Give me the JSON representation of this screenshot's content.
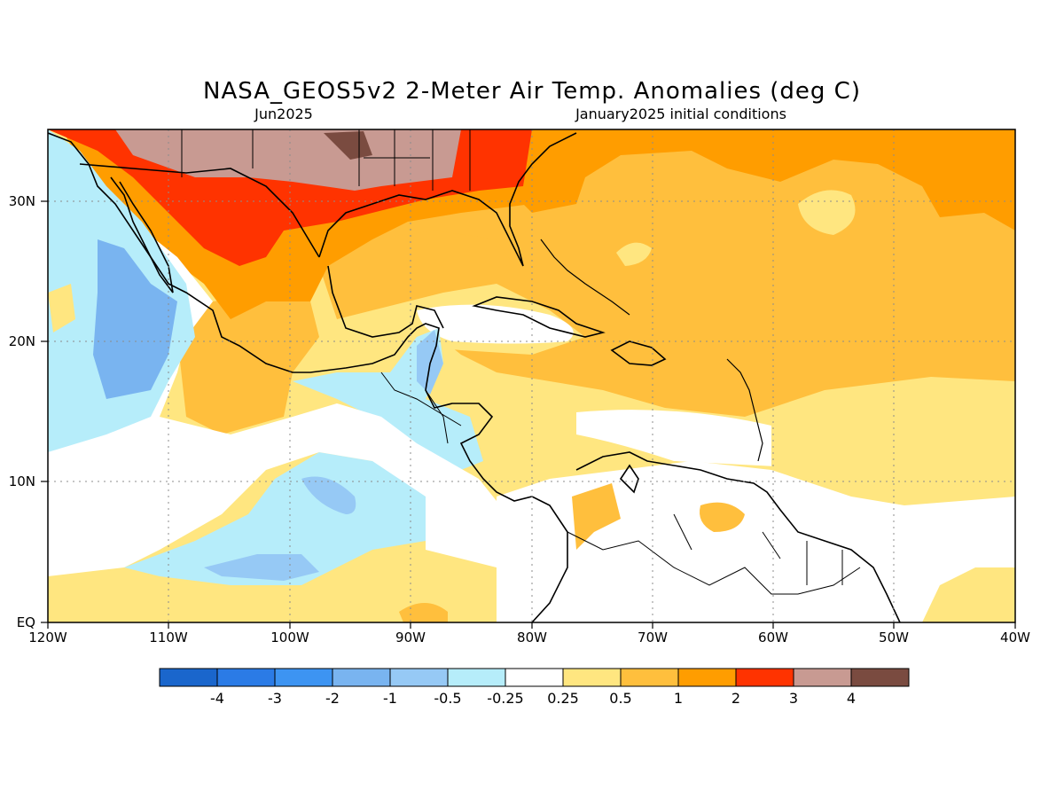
{
  "title": "NASA_GEOS5v2 2-Meter Air Temp. Anomalies (deg C)",
  "subtitle_left": "Jun2025",
  "subtitle_right": "January2025 initial conditions",
  "lat_labels": [
    "30N",
    "20N",
    "10N",
    "EQ"
  ],
  "lon_labels": [
    "120W",
    "110W",
    "100W",
    "90W",
    "80W",
    "70W",
    "60W",
    "50W",
    "40W"
  ],
  "colorbar": {
    "colors": [
      "#1a66cc",
      "#2b7be6",
      "#3d94f2",
      "#79b4f0",
      "#96c9f5",
      "#b6edfa",
      "#ffffff",
      "#ffe680",
      "#ffbf3d",
      "#ff9d00",
      "#ff3300",
      "#c89a92",
      "#7a4b40"
    ],
    "labels": [
      "-4",
      "-3",
      "-2",
      "-1",
      "-0.5",
      "-0.25",
      "0.25",
      "0.5",
      "1",
      "2",
      "3",
      "4"
    ]
  },
  "map_bounds": {
    "lon_min": -120,
    "lon_max": -40,
    "lat_min": 0,
    "lat_max": 35
  }
}
